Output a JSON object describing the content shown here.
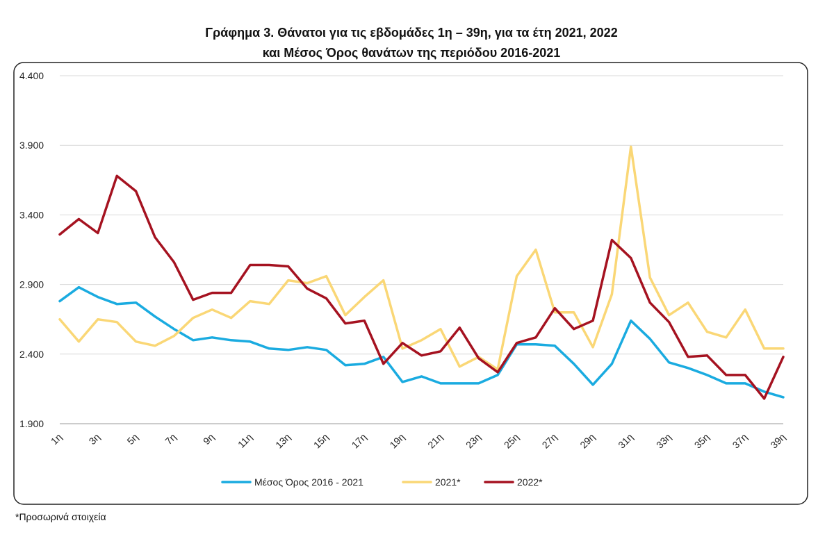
{
  "chart_data": {
    "type": "line",
    "title_line1": "Γράφημα 3. Θάνατοι για τις εβδομάδες 1η – 39η, για τα έτη 2021, 2022",
    "title_line2": "και Μέσος Όρος θανάτων της περιόδου 2016-2021",
    "ylim": [
      1900,
      4400
    ],
    "y_ticks": [
      1900,
      2400,
      2900,
      3400,
      3900,
      4400
    ],
    "y_tick_labels": [
      "1.900",
      "2.400",
      "2.900",
      "3.400",
      "3.900",
      "4.400"
    ],
    "x_tick_labels": [
      "1η",
      "3η",
      "5η",
      "7η",
      "9η",
      "11η",
      "13η",
      "15η",
      "17η",
      "19η",
      "21η",
      "23η",
      "25η",
      "27η",
      "29η",
      "31η",
      "33η",
      "35η",
      "37η",
      "39η"
    ],
    "x_tick_weeks": [
      1,
      3,
      5,
      7,
      9,
      11,
      13,
      15,
      17,
      19,
      21,
      23,
      25,
      27,
      29,
      31,
      33,
      35,
      37,
      39
    ],
    "grid": true,
    "legend_position": "bottom",
    "series": [
      {
        "name": "Μέσος Όρος 2016 - 2021",
        "color": "#1aabe0",
        "values": [
          2780,
          2880,
          2810,
          2760,
          2770,
          2670,
          2580,
          2500,
          2520,
          2500,
          2490,
          2440,
          2430,
          2450,
          2430,
          2320,
          2330,
          2380,
          2200,
          2240,
          2190,
          2190,
          2190,
          2250,
          2470,
          2470,
          2460,
          2330,
          2180,
          2330,
          2640,
          2510,
          2340,
          2300,
          2250,
          2190,
          2190,
          2130,
          2090
        ]
      },
      {
        "name": "2021*",
        "color": "#fad776",
        "values": [
          2650,
          2490,
          2650,
          2630,
          2490,
          2460,
          2530,
          2660,
          2720,
          2660,
          2780,
          2760,
          2930,
          2910,
          2960,
          2680,
          2810,
          2930,
          2440,
          2500,
          2580,
          2310,
          2380,
          2290,
          2960,
          3150,
          2700,
          2700,
          2450,
          2830,
          3890,
          2950,
          2680,
          2770,
          2560,
          2520,
          2720,
          2440,
          2440
        ]
      },
      {
        "name": "2022*",
        "color": "#a51220",
        "values": [
          3260,
          3370,
          3270,
          3680,
          3570,
          3240,
          3060,
          2790,
          2840,
          2840,
          3040,
          3040,
          3030,
          2870,
          2800,
          2620,
          2640,
          2330,
          2480,
          2390,
          2420,
          2590,
          2370,
          2270,
          2480,
          2520,
          2730,
          2580,
          2640,
          3220,
          3090,
          2770,
          2630,
          2380,
          2390,
          2250,
          2250,
          2080,
          2380
        ]
      }
    ]
  },
  "footnote": "*Προσωρινά στοιχεία"
}
